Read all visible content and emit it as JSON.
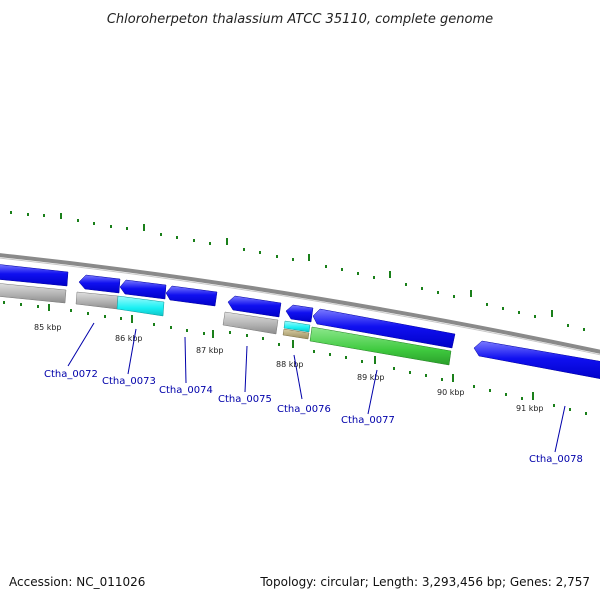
{
  "title": "Chloroherpeton thalassium ATCC 35110, complete genome",
  "footer": {
    "accession": "Accession: NC_011026",
    "topology": "Topology: circular; Length: 3,293,456 bp; Genes: 2,757"
  },
  "colors": {
    "cds_blue": "#0a0aee",
    "cds_blue_light": "#6f6ff7",
    "rna_gray": "#b4b4b4",
    "cyan": "#19f0f3",
    "tan": "#b7a97a",
    "green": "#3fca3f",
    "backbone": "#8a8a8a",
    "tick_green": "#1a801a",
    "label_blue": "#0000aa"
  },
  "kbp_labels": [
    "85 kbp",
    "86 kbp",
    "87 kbp",
    "88 kbp",
    "89 kbp",
    "90 kbp",
    "91 kbp"
  ],
  "gene_labels": [
    "Ctha_0072",
    "Ctha_0073",
    "Ctha_0074",
    "Ctha_0075",
    "Ctha_0076",
    "Ctha_0077",
    "Ctha_0078"
  ]
}
